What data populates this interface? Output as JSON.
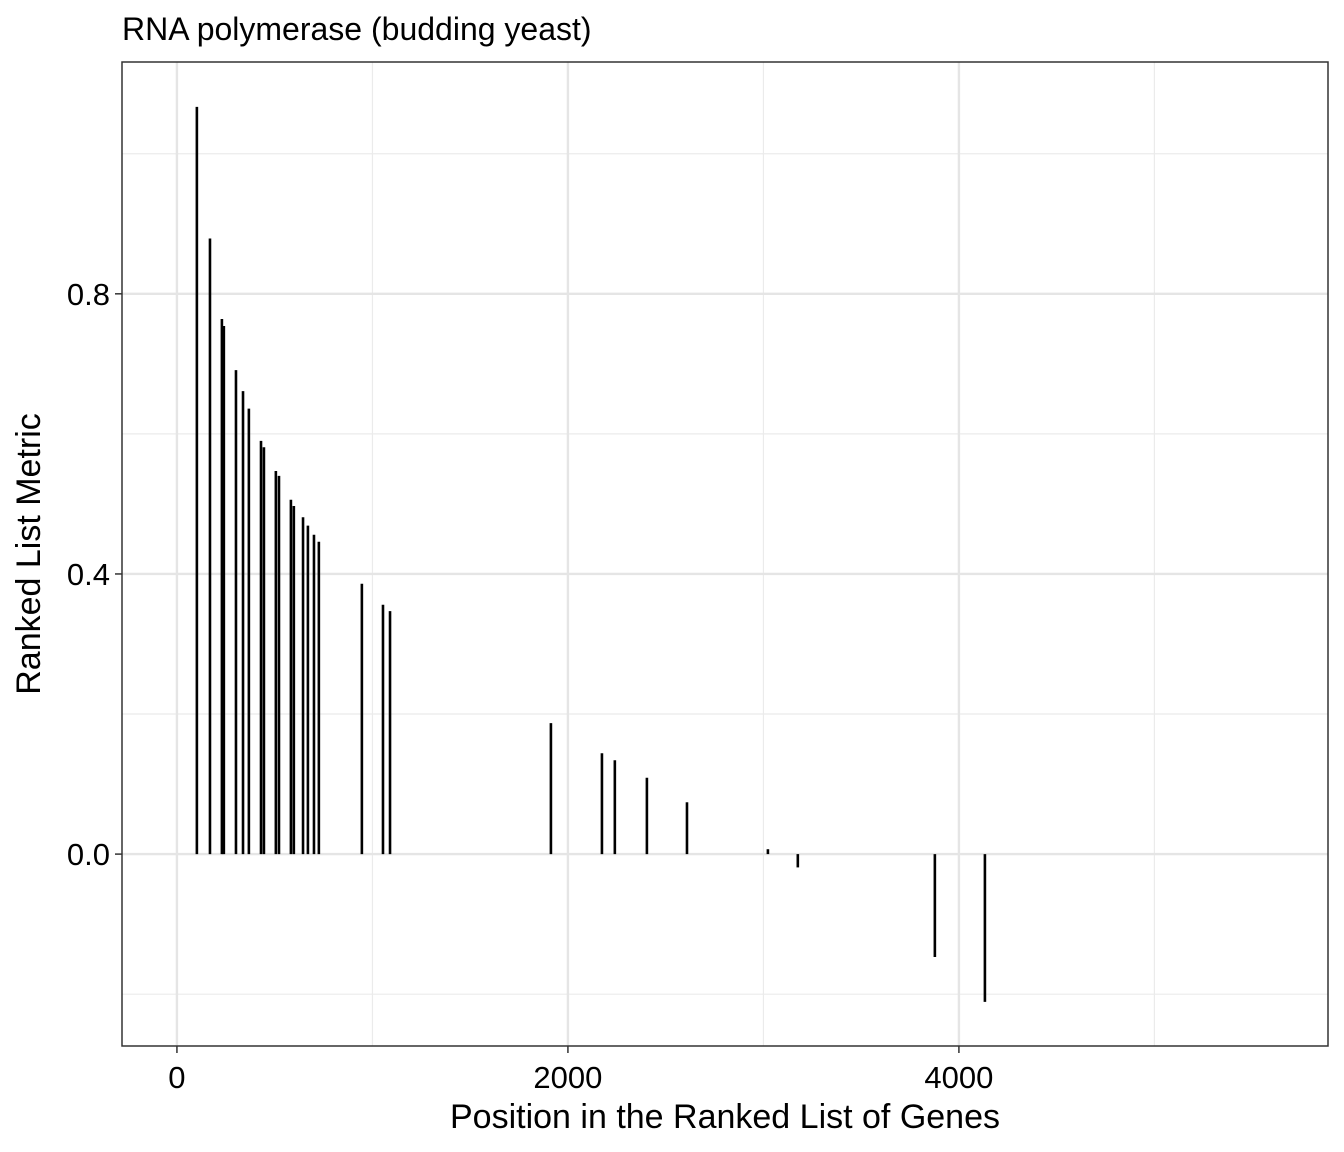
{
  "chart_data": {
    "type": "segment",
    "title": "RNA polymerase (budding yeast)",
    "x_label": "Position in the Ranked List of Genes",
    "y_label": "Ranked List Metric",
    "x": [
      102,
      169,
      230,
      240,
      302,
      338,
      368,
      430,
      445,
      506,
      522,
      583,
      598,
      645,
      670,
      701,
      726,
      946,
      1054,
      1090,
      1913,
      2174,
      2240,
      2404,
      2609,
      3023,
      3176,
      3877,
      4133
    ],
    "values": [
      1.067,
      0.879,
      0.764,
      0.754,
      0.691,
      0.661,
      0.636,
      0.59,
      0.581,
      0.547,
      0.54,
      0.506,
      0.497,
      0.481,
      0.469,
      0.456,
      0.446,
      0.386,
      0.356,
      0.347,
      0.187,
      0.144,
      0.134,
      0.109,
      0.074,
      0.007,
      -0.019,
      -0.147,
      -0.211
    ],
    "color": "#000000",
    "xlim": [
      -281,
      5888
    ],
    "ylim": [
      -0.274,
      1.131
    ],
    "xticks": [
      0,
      2000,
      4000
    ],
    "yticks": [
      {
        "value": 0,
        "label": "0.0"
      },
      0.4,
      0.8
    ],
    "minor_xticks": [
      1000,
      3000,
      5000
    ],
    "minor_yticks": [
      -0.2,
      0.2,
      0.6,
      1.0
    ],
    "grid": true
  }
}
